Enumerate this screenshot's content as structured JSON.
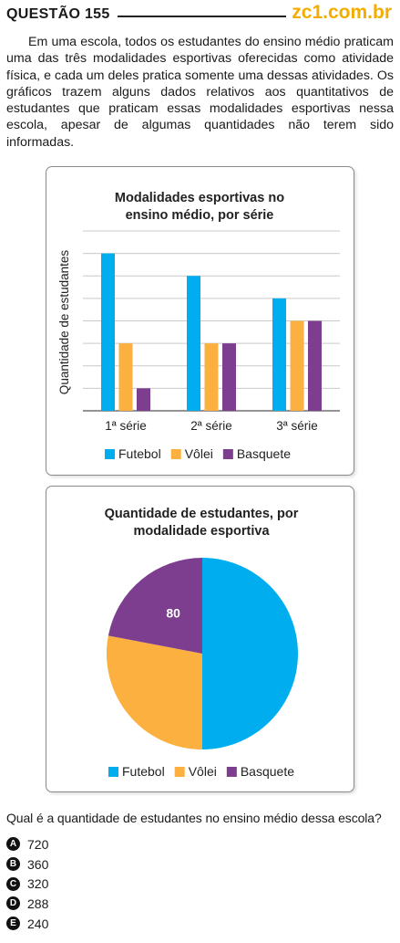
{
  "header": {
    "question_title": "QUESTÃO 155",
    "site": "zc1.com.br"
  },
  "statement": "Em uma escola, todos os estudantes do ensino médio praticam uma das três modalidades esportivas oferecidas como atividade física, e cada um deles pratica somente uma dessas atividades. Os gráficos trazem alguns dados relativos aos quantitativos de estudantes que praticam essas modalidades esportivas nessa escola, apesar de algumas quantidades não terem sido informadas.",
  "colors": {
    "futebol": "#00aeef",
    "volei": "#fbb040",
    "basquete": "#7d3e8f"
  },
  "chart_data": [
    {
      "type": "bar",
      "title": "Modalidades esportivas no ensino médio, por série",
      "title_lines": [
        "Modalidades esportivas no",
        "ensino médio, por série"
      ],
      "xlabel": "",
      "ylabel": "Quantidade de estudantes",
      "categories": [
        "1ª série",
        "2ª série",
        "3ª série"
      ],
      "series": [
        {
          "name": "Futebol",
          "values": [
            7,
            6,
            5
          ]
        },
        {
          "name": "Vôlei",
          "values": [
            3,
            3,
            4
          ]
        },
        {
          "name": "Basquete",
          "values": [
            1,
            3,
            4
          ]
        }
      ],
      "ylim": [
        0,
        8
      ],
      "grid": true,
      "y_tick_labels_shown": false,
      "legend": "bottom"
    },
    {
      "type": "pie",
      "title": "Quantidade de estudantes, por modalidade esportiva",
      "title_lines": [
        "Quantidade de estudantes, por",
        "modalidade esportiva"
      ],
      "labels": [
        "Futebol",
        "Vôlei",
        "Basquete"
      ],
      "values": [
        50,
        28,
        22
      ],
      "data_labels": [
        "",
        "",
        "80"
      ],
      "legend": "bottom"
    }
  ],
  "question": "Qual é a quantidade de estudantes no ensino médio dessa escola?",
  "options": [
    {
      "letter": "A",
      "value": "720"
    },
    {
      "letter": "B",
      "value": "360"
    },
    {
      "letter": "C",
      "value": "320"
    },
    {
      "letter": "D",
      "value": "288"
    },
    {
      "letter": "E",
      "value": "240"
    }
  ]
}
